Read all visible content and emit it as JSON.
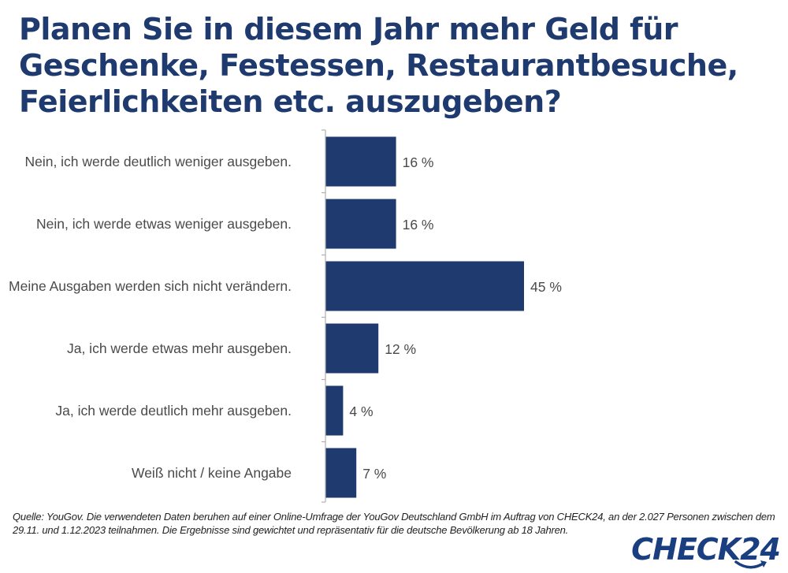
{
  "title": "Planen Sie in diesem Jahr mehr Geld für Geschenke, Festessen, Restaurantbesuche, Feierlichkeiten etc. auszugeben?",
  "source": "Quelle: YouGov. Die verwendeten Daten beruhen auf einer Online-Umfrage der YouGov Deutschland GmbH im Auftrag von CHECK24, an der 2.027 Personen zwischen dem 29.11. und 1.12.2023 teilnahmen. Die Ergebnisse sind gewichtet und repräsentativ für die deutsche Bevölkerung ab 18 Jahren.",
  "logo": {
    "text": "CHECK24",
    "icon": "smile-arrow-icon"
  },
  "colors": {
    "bar": "#1f3a6e",
    "title": "#1e3a6e",
    "axis": "#b0b0b0",
    "logo": "#1a3f80"
  },
  "chart_data": {
    "type": "bar",
    "orientation": "horizontal",
    "title": "Planen Sie in diesem Jahr mehr Geld für Geschenke, Festessen, Restaurantbesuche, Feierlichkeiten etc. auszugeben?",
    "xlabel": "",
    "ylabel": "",
    "xlim": [
      0,
      100
    ],
    "grid": false,
    "categories": [
      "Nein, ich werde deutlich weniger ausgeben.",
      "Nein, ich werde etwas weniger ausgeben.",
      "Meine Ausgaben werden sich nicht verändern.",
      "Ja, ich werde etwas mehr ausgeben.",
      "Ja, ich werde deutlich mehr ausgeben.",
      "Weiß nicht / keine Angabe"
    ],
    "values": [
      16,
      16,
      45,
      12,
      4,
      7
    ],
    "value_labels": [
      "16 %",
      "16 %",
      "45 %",
      "12 %",
      "4 %",
      "7 %"
    ]
  }
}
